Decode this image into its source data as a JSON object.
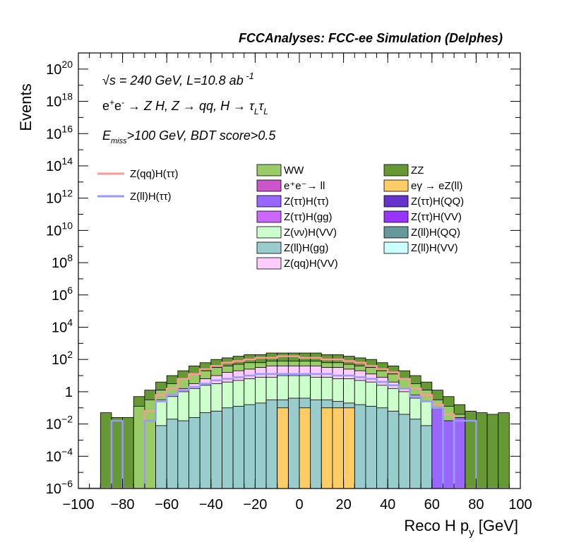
{
  "chart_data": {
    "type": "bar",
    "title": "FCCAnalyses: FCC-ee Simulation (Delphes)",
    "xlabel": "Reco H p_y [GeV]",
    "ylabel": "Events",
    "xlim": [
      -100,
      100
    ],
    "ylim_exponent": [
      -6,
      21
    ],
    "y_scale": "log",
    "x_ticks": [
      "−100",
      "−80",
      "−60",
      "−40",
      "−20",
      "0",
      "20",
      "40",
      "60",
      "80",
      "100"
    ],
    "y_ticks": [
      {
        "base": "10",
        "exp": "−6",
        "log": -6
      },
      {
        "base": "10",
        "exp": "−4",
        "log": -4
      },
      {
        "base": "10",
        "exp": "−2",
        "log": -2
      },
      {
        "base": "1",
        "exp": "",
        "log": 0
      },
      {
        "base": "10",
        "exp": "2",
        "log": 2
      },
      {
        "base": "10",
        "exp": "4",
        "log": 4
      },
      {
        "base": "10",
        "exp": "6",
        "log": 6
      },
      {
        "base": "10",
        "exp": "8",
        "log": 8
      },
      {
        "base": "10",
        "exp": "10",
        "log": 10
      },
      {
        "base": "10",
        "exp": "12",
        "log": 12
      },
      {
        "base": "10",
        "exp": "14",
        "log": 14
      },
      {
        "base": "10",
        "exp": "16",
        "log": 16
      },
      {
        "base": "10",
        "exp": "18",
        "log": 18
      },
      {
        "base": "10",
        "exp": "20",
        "log": 20
      }
    ],
    "annotations": {
      "energy": "√s = 240 GeV, L=10.8 ab⁻¹",
      "process": "e⁺e⁻ → Z H, Z → qq, H → τLτL",
      "cuts": "Emiss>100 GeV, BDT score>0.5"
    },
    "stack_legend": [
      {
        "name": "WW",
        "color": "#99cc66"
      },
      {
        "name": "ZZ",
        "color": "#669933"
      },
      {
        "name": "e⁺e⁻→ ll",
        "color": "#cc55cc"
      },
      {
        "name": "eγ → eZ(ll)",
        "color": "#ffcc66"
      },
      {
        "name": "Z(ττ)H(ττ)",
        "color": "#9966ff"
      },
      {
        "name": "Z(ττ)H(QQ)",
        "color": "#6633cc"
      },
      {
        "name": "Z(ττ)H(gg)",
        "color": "#cc66ff"
      },
      {
        "name": "Z(ττ)H(VV)",
        "color": "#9933ff"
      },
      {
        "name": "Z(νν)H(VV)",
        "color": "#ccffcc"
      },
      {
        "name": "Z(ll)H(QQ)",
        "color": "#669999"
      },
      {
        "name": "Z(ll)H(gg)",
        "color": "#99cccc"
      },
      {
        "name": "Z(ll)H(VV)",
        "color": "#ccffff"
      },
      {
        "name": "Z(qq)H(VV)",
        "color": "#ffccff"
      }
    ],
    "signal_legend": [
      {
        "name": "Z(qq)H(ττ)",
        "color": "#ff9999"
      },
      {
        "name": "Z(ll)H(ττ)",
        "color": "#9999ff"
      }
    ],
    "bin_edges": [
      -100,
      95
    ],
    "bin_width": 5,
    "stack_log_tops": {
      "ZZ": [
        -6,
        -6,
        -1.3,
        -1.6,
        -1.6,
        -0.3,
        0.1,
        0.6,
        1.0,
        1.3,
        1.6,
        1.8,
        2.0,
        2.1,
        2.2,
        2.3,
        2.3,
        2.4,
        2.4,
        2.4,
        2.4,
        2.4,
        2.3,
        2.3,
        2.2,
        2.1,
        2.0,
        1.8,
        1.6,
        1.3,
        1.0,
        0.6,
        0.1,
        -0.3,
        -0.8,
        -1.2,
        -1.3,
        -1.4,
        -1.3
      ],
      "WW": [
        -6,
        -6,
        -6,
        -6,
        -6,
        -0.9,
        -0.5,
        0.1,
        0.5,
        0.8,
        1.1,
        1.3,
        1.5,
        1.6,
        1.7,
        1.8,
        1.8,
        1.9,
        1.9,
        1.9,
        1.9,
        1.9,
        1.8,
        1.8,
        1.7,
        1.6,
        1.5,
        1.3,
        1.1,
        0.8,
        0.5,
        0.1,
        -0.5,
        -0.9,
        -1.4,
        -6,
        -6,
        -6,
        -6
      ],
      "Z(qq)H(VV)": [
        -6,
        -6,
        -6,
        -6,
        -6,
        -6,
        -6,
        -6,
        -0.2,
        0.2,
        0.5,
        0.8,
        1.0,
        1.2,
        1.3,
        1.4,
        1.5,
        1.6,
        1.6,
        1.6,
        1.6,
        1.6,
        1.5,
        1.5,
        1.4,
        1.3,
        1.1,
        0.9,
        0.6,
        0.2,
        -0.2,
        -6,
        -6,
        -6,
        -6,
        -6,
        -6,
        -6,
        -6
      ],
      "Z(vv)H(VV)": [
        -6,
        -6,
        -6,
        -6,
        -6,
        -6,
        -6,
        -0.5,
        -0.3,
        0,
        0.2,
        0.4,
        0.5,
        0.6,
        0.7,
        0.8,
        0.9,
        0.9,
        1.0,
        1.0,
        1.0,
        0.9,
        0.9,
        0.8,
        0.8,
        0.7,
        0.6,
        0.4,
        0.2,
        0,
        -0.4,
        -0.6,
        -6,
        -6,
        -6,
        -6,
        -6,
        -6,
        -6
      ],
      "Z(ll)H(gg)": [
        -6,
        -6,
        -6,
        -6,
        -6,
        -6,
        -6,
        -2.1,
        -1.7,
        -1.8,
        -1.6,
        -1.3,
        -1.2,
        -1.0,
        -0.9,
        -0.8,
        -0.7,
        -0.5,
        -0.5,
        -0.4,
        -0.4,
        -0.5,
        -0.5,
        -0.6,
        -0.7,
        -0.8,
        -0.9,
        -1.0,
        -1.2,
        -1.4,
        -1.7,
        -2.1,
        -6,
        -6,
        -6,
        -6,
        -6,
        -6,
        -6
      ],
      "Z(tt)H(tt)": [
        -6,
        -6,
        -6,
        -6,
        -6,
        -6,
        -6,
        -6,
        -6,
        -6,
        -6,
        -6,
        -6,
        -6,
        -6,
        -6,
        -6,
        -6,
        -6,
        -6,
        -6,
        -6,
        -6,
        -6,
        -6,
        -6,
        -6,
        -6,
        -6,
        -6,
        -6,
        -6,
        -1.0,
        -1.8,
        -1.6,
        -6,
        -6,
        -6,
        -6
      ],
      "eg-eZ(ll)": [
        -6,
        -6,
        -6,
        -6,
        -6,
        -6,
        -6,
        -6,
        -6,
        -6,
        -6,
        -6,
        -6,
        -6,
        -6,
        -6,
        -6,
        -6,
        -1.0,
        -6,
        -1.0,
        -6,
        -1.0,
        -1.0,
        -1.0,
        -6,
        -6,
        -6,
        -6,
        -6,
        -6,
        -6,
        -6,
        -6,
        -6,
        -6,
        -6,
        -6,
        -6
      ]
    },
    "signal_log_tops": {
      "Z(qq)H(tt)": [
        -6,
        -6,
        -6,
        -6,
        -6,
        -6,
        -1.2,
        -0.2,
        0.2,
        0.8,
        1.1,
        1.4,
        1.6,
        1.8,
        1.9,
        2.0,
        2.1,
        2.1,
        2.2,
        2.2,
        2.1,
        2.1,
        2.0,
        2.0,
        1.9,
        1.8,
        1.6,
        1.4,
        1.2,
        0.8,
        0.2,
        -0.2,
        -0.8,
        -1.4,
        -6,
        -6,
        -6,
        -6,
        -6
      ],
      "Z(ll)H(tt)": [
        -6,
        -6,
        -6,
        -1.8,
        -6,
        -6,
        -1.8,
        -0.6,
        -0.2,
        0.1,
        0.3,
        0.5,
        0.7,
        0.8,
        0.9,
        1.0,
        1.1,
        1.1,
        1.1,
        1.1,
        1.1,
        1.1,
        1.1,
        1.0,
        1.0,
        0.9,
        0.8,
        0.6,
        0.4,
        0.2,
        -0.3,
        -0.6,
        -1.0,
        -6,
        -1.8,
        -1.8,
        -6,
        -6,
        -6
      ]
    }
  }
}
